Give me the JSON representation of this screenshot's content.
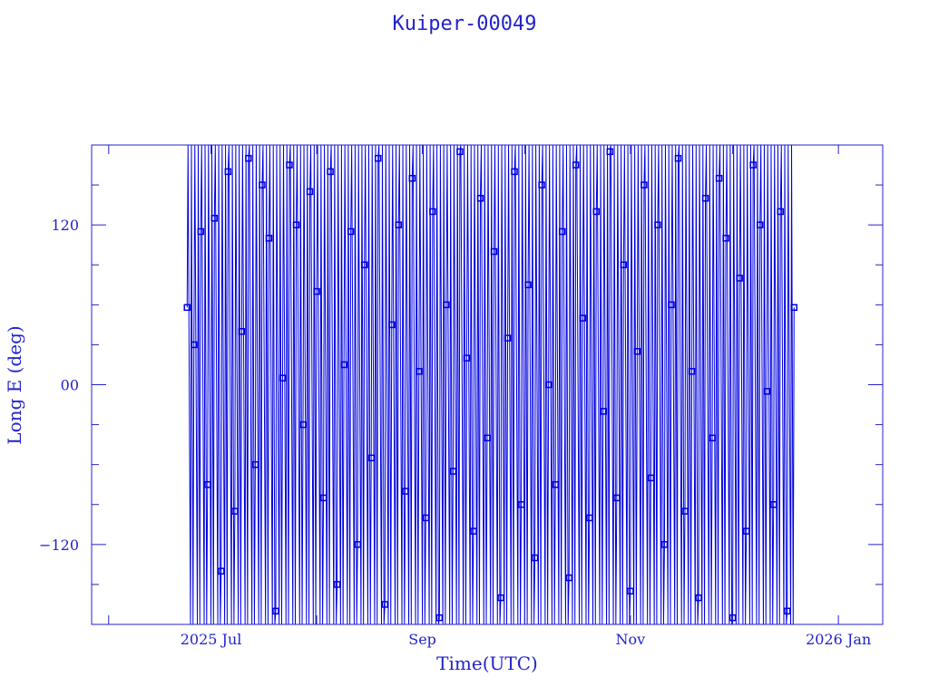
{
  "chart_data": {
    "type": "line",
    "title": "Kuiper-00049",
    "xlabel": "Time(UTC)",
    "ylabel": "Long E (deg)",
    "xlim": [
      "2025-05-27",
      "2026-01-14"
    ],
    "ylim": [
      -180,
      180
    ],
    "grid": false,
    "markers": "square",
    "color": "#0000e0",
    "axis_color": "#2222cc",
    "x_ticks": [
      {
        "date": "2025-07-01",
        "label": "2025 Jul"
      },
      {
        "date": "2025-09-01",
        "label": "Sep"
      },
      {
        "date": "2025-11-01",
        "label": "Nov"
      },
      {
        "date": "2026-01-01",
        "label": "2026 Jan"
      }
    ],
    "y_ticks": [
      {
        "value": 120,
        "label": "120"
      },
      {
        "value": 0,
        "label": "00"
      },
      {
        "value": -120,
        "label": "-120"
      }
    ],
    "x": [
      "2025-06-24",
      "2025-06-26",
      "2025-06-28",
      "2025-06-30",
      "2025-07-02",
      "2025-07-04",
      "2025-07-06",
      "2025-07-08",
      "2025-07-10",
      "2025-07-12",
      "2025-07-14",
      "2025-07-16",
      "2025-07-18",
      "2025-07-20",
      "2025-07-22",
      "2025-07-24",
      "2025-07-26",
      "2025-07-28",
      "2025-07-30",
      "2025-08-01",
      "2025-08-03",
      "2025-08-05",
      "2025-08-07",
      "2025-08-09",
      "2025-08-11",
      "2025-08-13",
      "2025-08-15",
      "2025-08-17",
      "2025-08-19",
      "2025-08-21",
      "2025-08-23",
      "2025-08-25",
      "2025-08-27",
      "2025-08-29",
      "2025-08-31",
      "2025-09-02",
      "2025-09-04",
      "2025-09-06",
      "2025-09-08",
      "2025-09-10",
      "2025-09-12",
      "2025-09-14",
      "2025-09-16",
      "2025-09-18",
      "2025-09-20",
      "2025-09-22",
      "2025-09-24",
      "2025-09-26",
      "2025-09-28",
      "2025-09-30",
      "2025-10-02",
      "2025-10-04",
      "2025-10-06",
      "2025-10-08",
      "2025-10-10",
      "2025-10-12",
      "2025-10-14",
      "2025-10-16",
      "2025-10-18",
      "2025-10-20",
      "2025-10-22",
      "2025-10-24",
      "2025-10-26",
      "2025-10-28",
      "2025-10-30",
      "2025-11-01",
      "2025-11-03",
      "2025-11-05",
      "2025-11-07",
      "2025-11-09",
      "2025-11-11",
      "2025-11-13",
      "2025-11-15",
      "2025-11-17",
      "2025-11-19",
      "2025-11-21",
      "2025-11-23",
      "2025-11-25",
      "2025-11-27",
      "2025-11-29",
      "2025-12-01",
      "2025-12-03",
      "2025-12-05",
      "2025-12-07",
      "2025-12-09",
      "2025-12-11",
      "2025-12-13",
      "2025-12-15",
      "2025-12-17",
      "2025-12-19"
    ],
    "y": [
      58,
      30,
      115,
      -75,
      125,
      -140,
      160,
      -95,
      40,
      170,
      -60,
      150,
      110,
      -170,
      5,
      165,
      120,
      -30,
      145,
      70,
      -85,
      160,
      -150,
      15,
      115,
      -120,
      90,
      -55,
      170,
      -165,
      45,
      120,
      -80,
      155,
      10,
      -100,
      130,
      -175,
      60,
      -65,
      175,
      20,
      -110,
      140,
      -40,
      100,
      -160,
      35,
      160,
      -90,
      75,
      -130,
      150,
      0,
      -75,
      115,
      -145,
      165,
      50,
      -100,
      130,
      -20,
      175,
      -85,
      90,
      -155,
      25,
      150,
      -70,
      120,
      -120,
      60,
      170,
      -95,
      10,
      -160,
      140,
      -40,
      155,
      110,
      -175,
      80,
      -110,
      165,
      120,
      -5,
      -90,
      130,
      -170,
      58
    ]
  }
}
